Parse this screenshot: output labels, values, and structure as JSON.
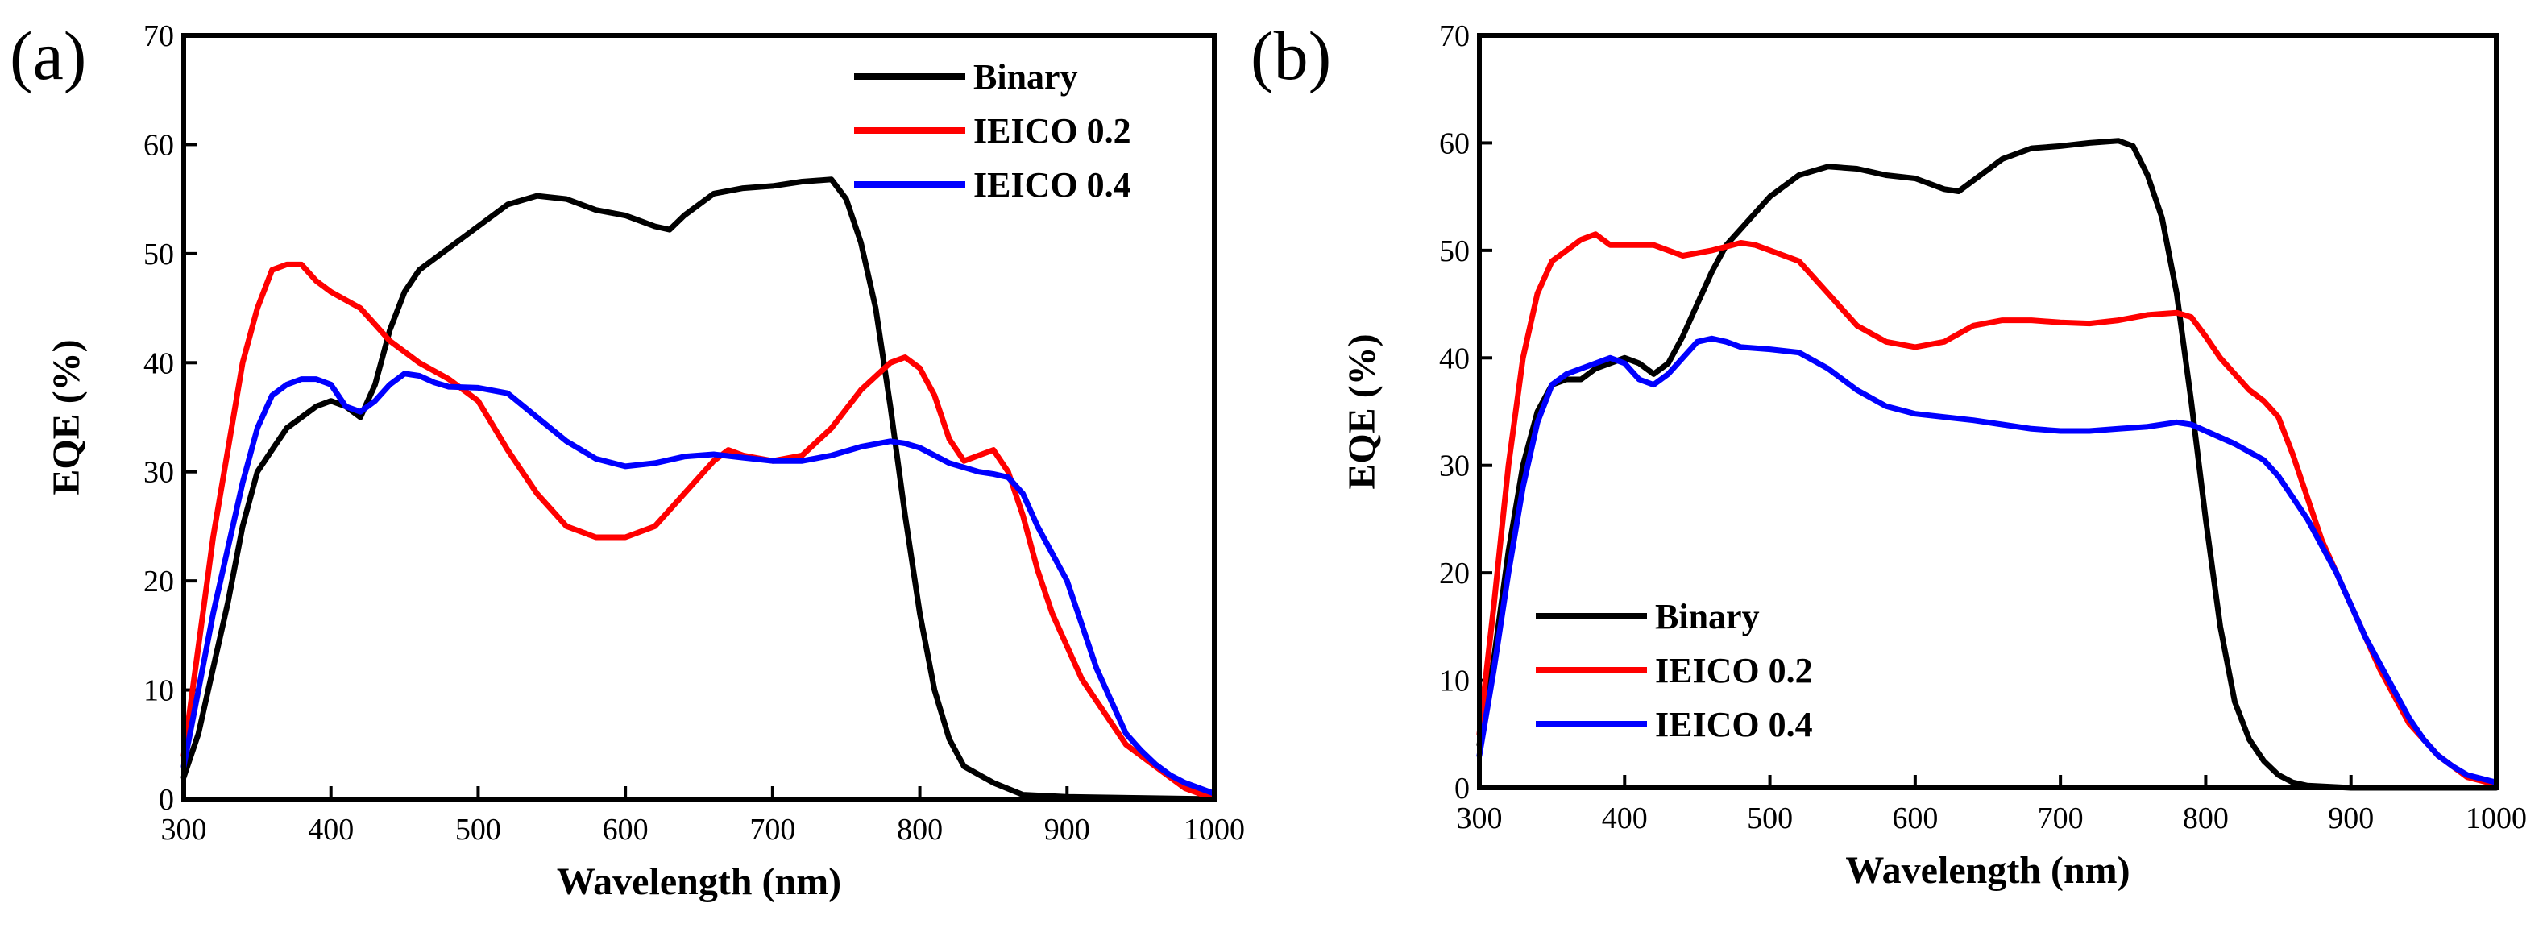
{
  "figure": {
    "background": "#ffffff"
  },
  "chart_data": [
    {
      "panel": "(a)",
      "type": "line",
      "xlabel": "Wavelength (nm)",
      "ylabel": "EQE (%)",
      "xlim": [
        300,
        1000
      ],
      "ylim": [
        0,
        70
      ],
      "xticks": [
        300,
        400,
        500,
        600,
        700,
        800,
        900,
        1000
      ],
      "yticks": [
        0,
        10,
        20,
        30,
        40,
        50,
        60,
        70
      ],
      "legend_position": "top-right",
      "grid": false,
      "series": [
        {
          "name": "Binary",
          "color": "#000000",
          "x": [
            300,
            310,
            320,
            330,
            340,
            350,
            360,
            370,
            380,
            390,
            400,
            410,
            420,
            430,
            440,
            450,
            460,
            470,
            480,
            490,
            500,
            520,
            540,
            560,
            580,
            600,
            610,
            620,
            630,
            640,
            660,
            680,
            700,
            720,
            740,
            750,
            760,
            770,
            780,
            790,
            800,
            810,
            820,
            830,
            850,
            870,
            900,
            950,
            1000
          ],
          "y": [
            2,
            6,
            12,
            18,
            25,
            30,
            32,
            34,
            35,
            36,
            36.5,
            36,
            35,
            38,
            43,
            46.5,
            48.5,
            49.5,
            50.5,
            51.5,
            52.5,
            54.5,
            55.3,
            55,
            54,
            53.5,
            53,
            52.5,
            52.2,
            53.5,
            55.5,
            56,
            56.2,
            56.6,
            56.8,
            55,
            51,
            45,
            36,
            26,
            17,
            10,
            5.5,
            3,
            1.5,
            0.4,
            0.2,
            0.1,
            0
          ]
        },
        {
          "name": "IEICO 0.2",
          "color": "#ff0000",
          "x": [
            300,
            310,
            320,
            330,
            340,
            350,
            360,
            370,
            380,
            390,
            400,
            420,
            440,
            460,
            480,
            500,
            520,
            540,
            560,
            580,
            600,
            620,
            640,
            660,
            670,
            680,
            700,
            720,
            740,
            760,
            780,
            790,
            800,
            810,
            820,
            830,
            840,
            850,
            860,
            870,
            880,
            890,
            900,
            910,
            920,
            930,
            940,
            950,
            960,
            970,
            980,
            1000
          ],
          "y": [
            4,
            14,
            24,
            32,
            40,
            45,
            48.5,
            49,
            49,
            47.5,
            46.5,
            45,
            42,
            40,
            38.5,
            36.5,
            32,
            28,
            25,
            24,
            24,
            25,
            28,
            31,
            32,
            31.5,
            31,
            31.5,
            34,
            37.5,
            40,
            40.5,
            39.5,
            37,
            33,
            31,
            31.5,
            32,
            30,
            26,
            21,
            17,
            14,
            11,
            9,
            7,
            5,
            4,
            3,
            2,
            1,
            0
          ]
        },
        {
          "name": "IEICO 0.4",
          "color": "#0000ff",
          "x": [
            300,
            310,
            320,
            330,
            340,
            350,
            360,
            370,
            380,
            390,
            400,
            410,
            420,
            430,
            440,
            450,
            460,
            470,
            480,
            500,
            520,
            540,
            560,
            580,
            600,
            620,
            640,
            660,
            680,
            700,
            720,
            740,
            760,
            780,
            790,
            800,
            820,
            840,
            850,
            860,
            870,
            880,
            890,
            900,
            910,
            920,
            930,
            940,
            950,
            960,
            970,
            980,
            1000
          ],
          "y": [
            3,
            10,
            17,
            23,
            29,
            34,
            37,
            38,
            38.5,
            38.5,
            38,
            36,
            35.5,
            36.5,
            38,
            39,
            38.8,
            38.2,
            37.8,
            37.7,
            37.2,
            35,
            32.8,
            31.2,
            30.5,
            30.8,
            31.4,
            31.6,
            31.3,
            31,
            31,
            31.5,
            32.3,
            32.8,
            32.6,
            32.2,
            30.8,
            30,
            29.8,
            29.5,
            28,
            25,
            22.5,
            20,
            16,
            12,
            9,
            6,
            4.5,
            3.2,
            2.2,
            1.5,
            0.5
          ]
        }
      ]
    },
    {
      "panel": "(b)",
      "type": "line",
      "xlabel": "Wavelength (nm)",
      "ylabel": "EQE (%)",
      "xlim": [
        300,
        1000
      ],
      "ylim": [
        0,
        70
      ],
      "xticks": [
        300,
        400,
        500,
        600,
        700,
        800,
        900,
        1000
      ],
      "yticks": [
        0,
        10,
        20,
        30,
        40,
        50,
        60,
        70
      ],
      "legend_position": "bottom-left",
      "grid": false,
      "series": [
        {
          "name": "Binary",
          "color": "#000000",
          "x": [
            300,
            310,
            320,
            330,
            340,
            350,
            360,
            370,
            380,
            390,
            400,
            410,
            420,
            430,
            440,
            450,
            460,
            470,
            480,
            490,
            500,
            520,
            540,
            560,
            580,
            600,
            610,
            620,
            630,
            640,
            660,
            680,
            700,
            720,
            740,
            750,
            760,
            770,
            780,
            790,
            800,
            810,
            820,
            830,
            840,
            850,
            860,
            870,
            900,
            1000
          ],
          "y": [
            4,
            12,
            22,
            30,
            35,
            37.5,
            38,
            38,
            39,
            39.5,
            40,
            39.5,
            38.5,
            39.5,
            42,
            45,
            48,
            50.5,
            52,
            53.5,
            55,
            57,
            57.8,
            57.6,
            57,
            56.7,
            56.2,
            55.7,
            55.5,
            56.5,
            58.5,
            59.5,
            59.7,
            60,
            60.2,
            59.7,
            57,
            53,
            46,
            36,
            25,
            15,
            8,
            4.5,
            2.5,
            1.2,
            0.5,
            0.2,
            0,
            0
          ]
        },
        {
          "name": "IEICO 0.2",
          "color": "#ff0000",
          "x": [
            300,
            310,
            320,
            330,
            340,
            350,
            360,
            370,
            380,
            390,
            400,
            420,
            440,
            460,
            480,
            490,
            500,
            520,
            540,
            560,
            580,
            600,
            620,
            640,
            660,
            680,
            700,
            720,
            740,
            760,
            780,
            790,
            800,
            810,
            820,
            830,
            840,
            850,
            860,
            870,
            880,
            890,
            900,
            910,
            920,
            930,
            940,
            950,
            960,
            970,
            980,
            1000
          ],
          "y": [
            5,
            17,
            30,
            40,
            46,
            49,
            50,
            51,
            51.5,
            50.5,
            50.5,
            50.5,
            49.5,
            50,
            50.7,
            50.5,
            50,
            49,
            46,
            43,
            41.5,
            41,
            41.5,
            43,
            43.5,
            43.5,
            43.3,
            43.2,
            43.5,
            44,
            44.2,
            43.8,
            42,
            40,
            38.5,
            37,
            36,
            34.5,
            31,
            27,
            23,
            20,
            17,
            14,
            11,
            8.5,
            6,
            4.5,
            3,
            2,
            1,
            0.3
          ]
        },
        {
          "name": "IEICO 0.4",
          "color": "#0000ff",
          "x": [
            300,
            310,
            320,
            330,
            340,
            350,
            360,
            370,
            380,
            390,
            400,
            410,
            420,
            430,
            440,
            450,
            460,
            470,
            480,
            500,
            520,
            540,
            560,
            580,
            600,
            620,
            640,
            660,
            680,
            700,
            720,
            740,
            760,
            780,
            790,
            800,
            820,
            840,
            850,
            860,
            870,
            880,
            890,
            900,
            910,
            920,
            930,
            940,
            950,
            960,
            970,
            980,
            1000
          ],
          "y": [
            3,
            11,
            20,
            28,
            34,
            37.5,
            38.5,
            39,
            39.5,
            40,
            39.5,
            38,
            37.5,
            38.5,
            40,
            41.5,
            41.8,
            41.5,
            41,
            40.8,
            40.5,
            39,
            37,
            35.5,
            34.8,
            34.5,
            34.2,
            33.8,
            33.4,
            33.2,
            33.2,
            33.4,
            33.6,
            34,
            33.8,
            33.2,
            32,
            30.5,
            29,
            27,
            25,
            22.5,
            20,
            17,
            14,
            11.5,
            9,
            6.5,
            4.5,
            3,
            2,
            1.2,
            0.5
          ]
        }
      ]
    }
  ]
}
